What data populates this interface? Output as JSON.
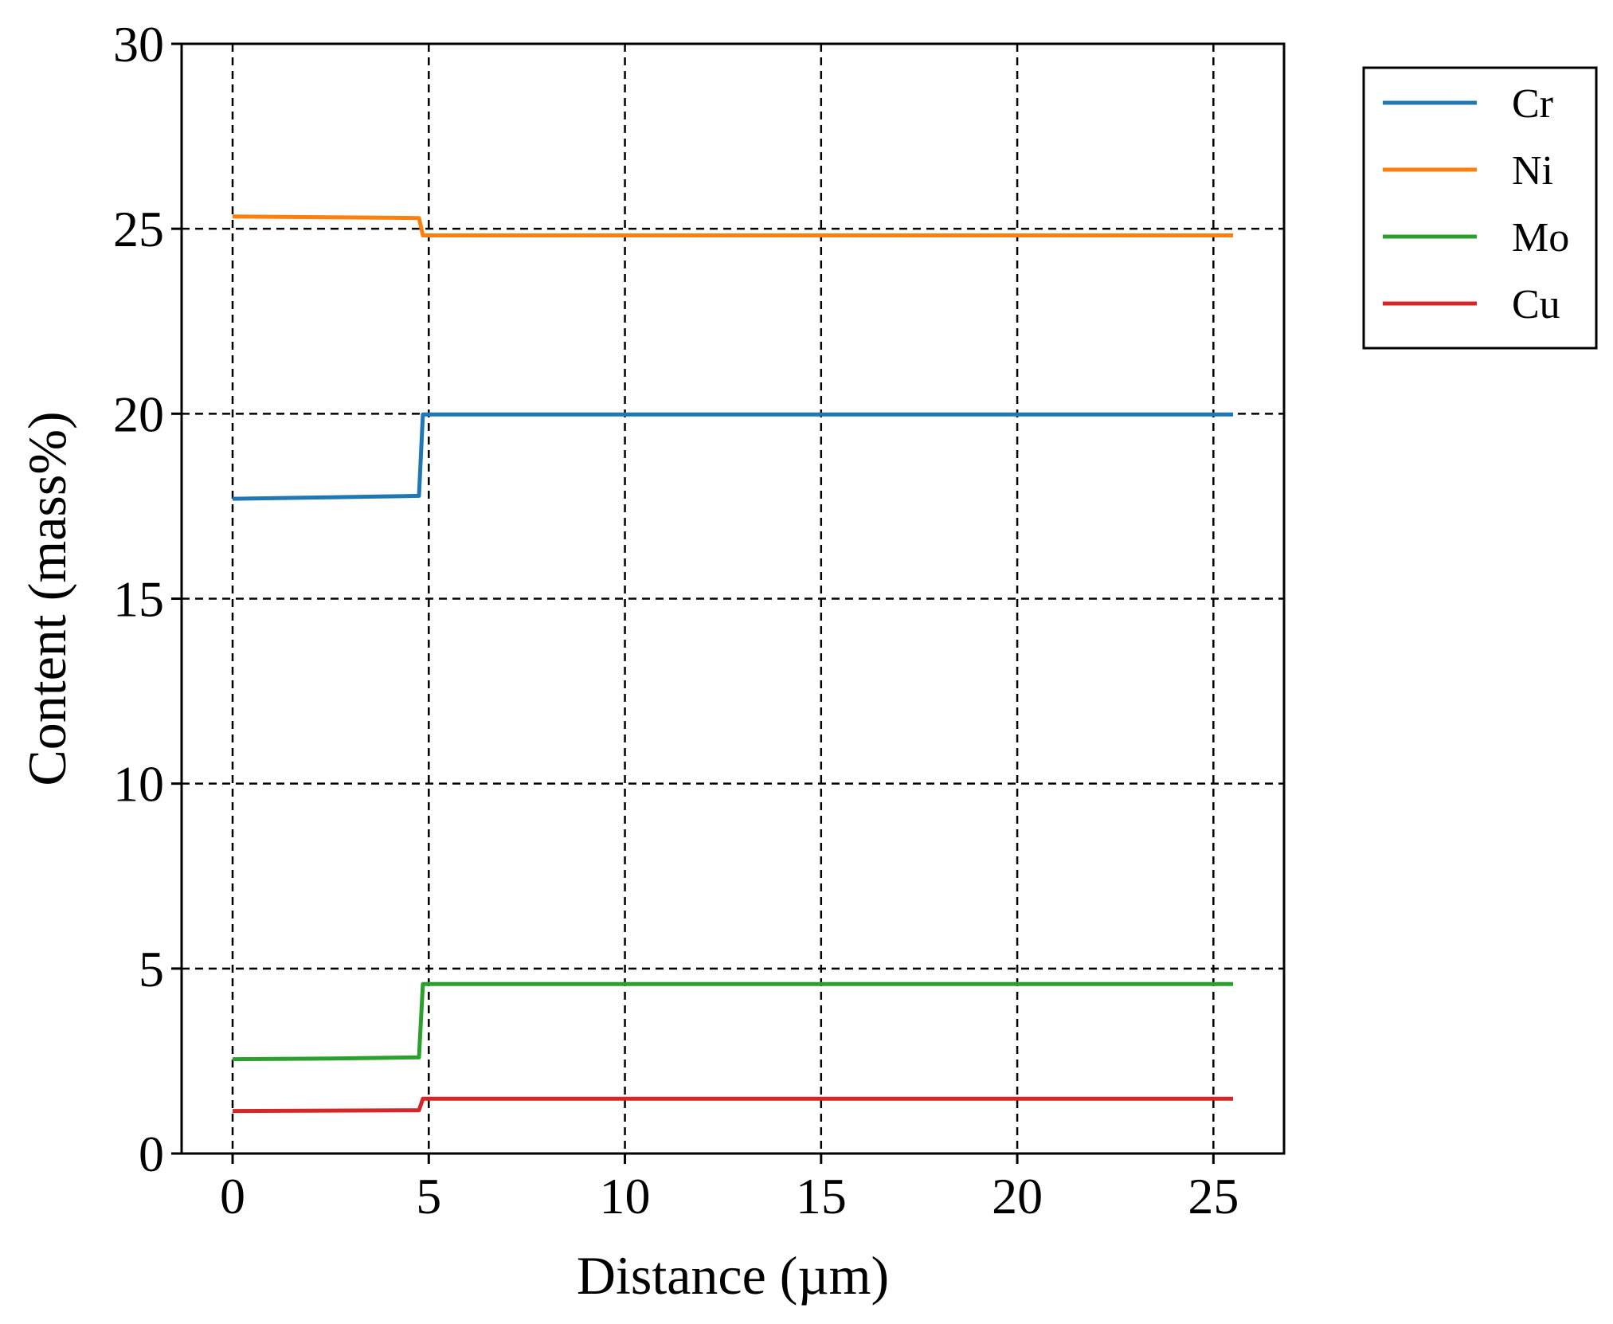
{
  "chart_data": {
    "type": "line",
    "title": "",
    "xlabel": "Distance (µm)",
    "ylabel": "Content (mass%)",
    "xlim": [
      -1.3,
      26.8
    ],
    "ylim": [
      0,
      30
    ],
    "xticks": [
      0,
      5,
      10,
      15,
      20,
      25
    ],
    "yticks": [
      0,
      5,
      10,
      15,
      20,
      25,
      30
    ],
    "grid": true,
    "legend_position": "outside-top-right",
    "series": [
      {
        "name": "Cr",
        "color": "#1f77b4",
        "x": [
          0,
          2.5,
          4.75,
          4.85,
          10,
          15,
          20,
          25.5
        ],
        "y": [
          17.7,
          17.74,
          17.78,
          19.98,
          19.98,
          19.98,
          19.98,
          19.98
        ]
      },
      {
        "name": "Ni",
        "color": "#ff7f0e",
        "x": [
          0,
          2.5,
          4.75,
          4.85,
          10,
          15,
          20,
          25.5
        ],
        "y": [
          25.33,
          25.31,
          25.29,
          24.82,
          24.82,
          24.82,
          24.82,
          24.82
        ]
      },
      {
        "name": "Mo",
        "color": "#2ca02c",
        "x": [
          0,
          2.5,
          4.75,
          4.85,
          10,
          15,
          20,
          25.5
        ],
        "y": [
          2.55,
          2.57,
          2.6,
          4.58,
          4.58,
          4.58,
          4.58,
          4.58
        ]
      },
      {
        "name": "Cu",
        "color": "#d62728",
        "x": [
          0,
          2.5,
          4.75,
          4.85,
          10,
          15,
          20,
          25.5
        ],
        "y": [
          1.15,
          1.16,
          1.17,
          1.48,
          1.48,
          1.48,
          1.48,
          1.48
        ]
      }
    ]
  }
}
